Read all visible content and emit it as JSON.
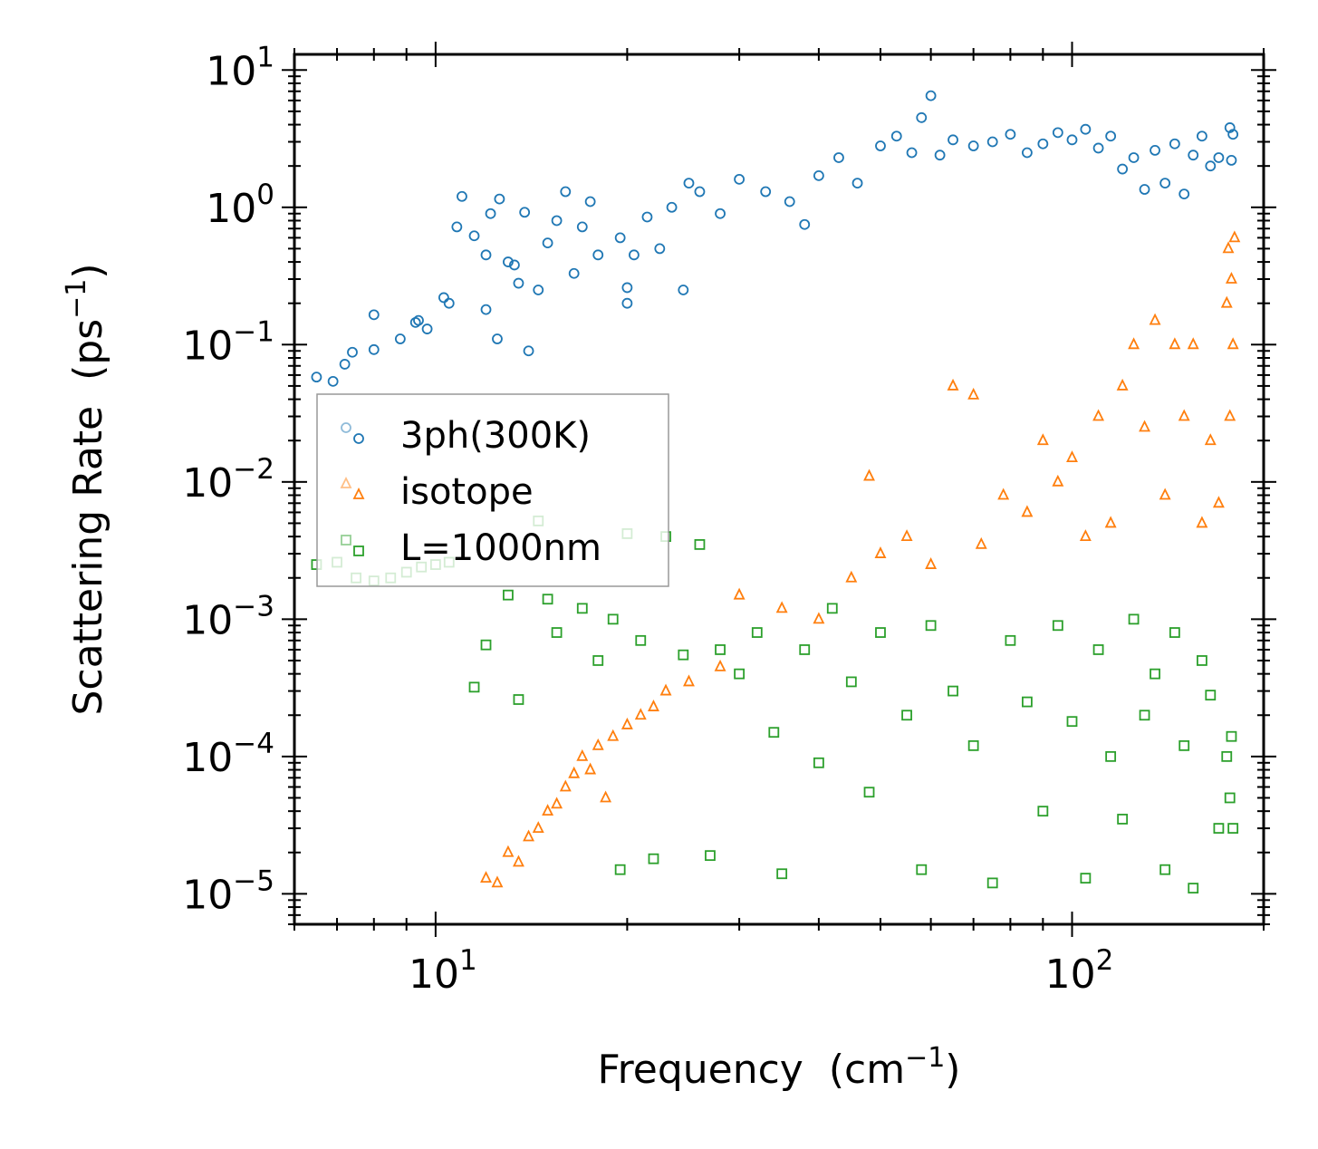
{
  "chart_data": {
    "type": "scatter",
    "title": "",
    "xlabel": "Frequency",
    "xlabel_unit": "(cm",
    "xlabel_unit_exp": "−1",
    "xlabel_unit_close": ")",
    "ylabel": "Scattering Rate",
    "ylabel_unit": "(ps",
    "ylabel_unit_exp": "−1",
    "ylabel_unit_close": ")",
    "xscale": "log",
    "yscale": "log",
    "xlim": [
      6.0,
      200.0
    ],
    "ylim": [
      6e-06,
      13.0
    ],
    "x_ticks": [
      {
        "value": 10,
        "base": "10",
        "exp": "1"
      },
      {
        "value": 100,
        "base": "10",
        "exp": "2"
      }
    ],
    "y_ticks": [
      {
        "value": 10,
        "base": "10",
        "exp": "1"
      },
      {
        "value": 1,
        "base": "10",
        "exp": "0"
      },
      {
        "value": 0.1,
        "base": "10",
        "exp": "−1"
      },
      {
        "value": 0.01,
        "base": "10",
        "exp": "−2"
      },
      {
        "value": 0.001,
        "base": "10",
        "exp": "−3"
      },
      {
        "value": 0.0001,
        "base": "10",
        "exp": "−4"
      },
      {
        "value": 1e-05,
        "base": "10",
        "exp": "−5"
      }
    ],
    "legend_position": "center-left",
    "series": [
      {
        "name": "3ph(300K)",
        "marker": "circle",
        "color": "#1f77b4",
        "points": [
          [
            6.5,
            0.058
          ],
          [
            6.9,
            0.054
          ],
          [
            7.2,
            0.072
          ],
          [
            7.4,
            0.088
          ],
          [
            8.0,
            0.092
          ],
          [
            8.0,
            0.165
          ],
          [
            8.8,
            0.11
          ],
          [
            9.3,
            0.145
          ],
          [
            9.4,
            0.15
          ],
          [
            9.7,
            0.13
          ],
          [
            10.3,
            0.22
          ],
          [
            10.5,
            0.2
          ],
          [
            10.8,
            0.72
          ],
          [
            11.0,
            1.2
          ],
          [
            11.5,
            0.62
          ],
          [
            12.0,
            0.18
          ],
          [
            12.0,
            0.45
          ],
          [
            12.2,
            0.9
          ],
          [
            12.5,
            0.11
          ],
          [
            12.6,
            1.15
          ],
          [
            13.0,
            0.4
          ],
          [
            13.3,
            0.38
          ],
          [
            13.5,
            0.28
          ],
          [
            13.8,
            0.92
          ],
          [
            14.0,
            0.09
          ],
          [
            14.5,
            0.25
          ],
          [
            15.0,
            0.55
          ],
          [
            15.5,
            0.8
          ],
          [
            16.0,
            1.3
          ],
          [
            16.5,
            0.33
          ],
          [
            17.0,
            0.72
          ],
          [
            17.5,
            1.1
          ],
          [
            18.0,
            0.45
          ],
          [
            19.5,
            0.6
          ],
          [
            20.0,
            0.26
          ],
          [
            20.0,
            0.2
          ],
          [
            20.5,
            0.45
          ],
          [
            21.5,
            0.85
          ],
          [
            22.5,
            0.5
          ],
          [
            23.5,
            1.0
          ],
          [
            24.5,
            0.25
          ],
          [
            25.0,
            1.5
          ],
          [
            26.0,
            1.3
          ],
          [
            28.0,
            0.9
          ],
          [
            30.0,
            1.6
          ],
          [
            33.0,
            1.3
          ],
          [
            36.0,
            1.1
          ],
          [
            38.0,
            0.75
          ],
          [
            40.0,
            1.7
          ],
          [
            43.0,
            2.3
          ],
          [
            46.0,
            1.5
          ],
          [
            50.0,
            2.8
          ],
          [
            53.0,
            3.3
          ],
          [
            56.0,
            2.5
          ],
          [
            58.0,
            4.5
          ],
          [
            60.0,
            6.5
          ],
          [
            62.0,
            2.4
          ],
          [
            65.0,
            3.1
          ],
          [
            70.0,
            2.8
          ],
          [
            75.0,
            3.0
          ],
          [
            80.0,
            3.4
          ],
          [
            85.0,
            2.5
          ],
          [
            90.0,
            2.9
          ],
          [
            95.0,
            3.5
          ],
          [
            100.0,
            3.1
          ],
          [
            105.0,
            3.7
          ],
          [
            110.0,
            2.7
          ],
          [
            115.0,
            3.3
          ],
          [
            120.0,
            1.9
          ],
          [
            125.0,
            2.3
          ],
          [
            130.0,
            1.35
          ],
          [
            135.0,
            2.6
          ],
          [
            140.0,
            1.5
          ],
          [
            145.0,
            2.9
          ],
          [
            150.0,
            1.25
          ],
          [
            155.0,
            2.4
          ],
          [
            160.0,
            3.3
          ],
          [
            165.0,
            2.0
          ],
          [
            170.0,
            2.3
          ],
          [
            177.0,
            3.8
          ],
          [
            178.0,
            2.2
          ],
          [
            179.0,
            3.4
          ]
        ]
      },
      {
        "name": "isotope",
        "marker": "triangle",
        "color": "#ff7f0e",
        "points": [
          [
            12.0,
            1.3e-05
          ],
          [
            12.5,
            1.2e-05
          ],
          [
            13.0,
            2e-05
          ],
          [
            13.5,
            1.7e-05
          ],
          [
            14.0,
            2.6e-05
          ],
          [
            14.5,
            3e-05
          ],
          [
            15.0,
            4e-05
          ],
          [
            15.5,
            4.5e-05
          ],
          [
            16.0,
            6e-05
          ],
          [
            16.5,
            7.5e-05
          ],
          [
            17.0,
            0.0001
          ],
          [
            17.5,
            8e-05
          ],
          [
            18.0,
            0.00012
          ],
          [
            18.5,
            5e-05
          ],
          [
            19.0,
            0.00014
          ],
          [
            20.0,
            0.00017
          ],
          [
            21.0,
            0.0002
          ],
          [
            22.0,
            0.00023
          ],
          [
            23.0,
            0.0003
          ],
          [
            25.0,
            0.00035
          ],
          [
            28.0,
            0.00045
          ],
          [
            30.0,
            0.0015
          ],
          [
            35.0,
            0.0012
          ],
          [
            40.0,
            0.001
          ],
          [
            45.0,
            0.002
          ],
          [
            48.0,
            0.011
          ],
          [
            50.0,
            0.003
          ],
          [
            55.0,
            0.004
          ],
          [
            60.0,
            0.0025
          ],
          [
            65.0,
            0.05
          ],
          [
            70.0,
            0.043
          ],
          [
            72.0,
            0.0035
          ],
          [
            78.0,
            0.008
          ],
          [
            85.0,
            0.006
          ],
          [
            90.0,
            0.02
          ],
          [
            95.0,
            0.01
          ],
          [
            100.0,
            0.015
          ],
          [
            105.0,
            0.004
          ],
          [
            110.0,
            0.03
          ],
          [
            115.0,
            0.005
          ],
          [
            120.0,
            0.05
          ],
          [
            125.0,
            0.1
          ],
          [
            130.0,
            0.025
          ],
          [
            135.0,
            0.15
          ],
          [
            140.0,
            0.008
          ],
          [
            145.0,
            0.1
          ],
          [
            150.0,
            0.03
          ],
          [
            155.0,
            0.1
          ],
          [
            160.0,
            0.005
          ],
          [
            165.0,
            0.02
          ],
          [
            170.0,
            0.007
          ],
          [
            175.0,
            0.2
          ],
          [
            176.0,
            0.5
          ],
          [
            177.0,
            0.03
          ],
          [
            178.0,
            0.3
          ],
          [
            179.0,
            0.1
          ],
          [
            180.0,
            0.6
          ]
        ]
      },
      {
        "name": "L=1000nm",
        "marker": "square",
        "color": "#2ca02c",
        "points": [
          [
            6.5,
            0.0025
          ],
          [
            7.0,
            0.0026
          ],
          [
            7.5,
            0.002
          ],
          [
            8.0,
            0.0019
          ],
          [
            8.5,
            0.002
          ],
          [
            9.0,
            0.0022
          ],
          [
            9.5,
            0.0024
          ],
          [
            10.0,
            0.0025
          ],
          [
            10.5,
            0.0026
          ],
          [
            11.5,
            0.00032
          ],
          [
            12.0,
            0.00065
          ],
          [
            13.0,
            0.0015
          ],
          [
            13.5,
            0.00026
          ],
          [
            14.5,
            0.0052
          ],
          [
            15.0,
            0.0014
          ],
          [
            15.5,
            0.0008
          ],
          [
            17.0,
            0.0012
          ],
          [
            18.0,
            0.0005
          ],
          [
            19.0,
            0.001
          ],
          [
            19.5,
            1.5e-05
          ],
          [
            20.0,
            0.0042
          ],
          [
            21.0,
            0.0007
          ],
          [
            22.0,
            1.8e-05
          ],
          [
            23.0,
            0.004
          ],
          [
            24.5,
            0.00055
          ],
          [
            26.0,
            0.0035
          ],
          [
            27.0,
            1.9e-05
          ],
          [
            28.0,
            0.0006
          ],
          [
            30.0,
            0.0004
          ],
          [
            32.0,
            0.0008
          ],
          [
            34.0,
            0.00015
          ],
          [
            35.0,
            1.4e-05
          ],
          [
            38.0,
            0.0006
          ],
          [
            40.0,
            9e-05
          ],
          [
            42.0,
            0.0012
          ],
          [
            45.0,
            0.00035
          ],
          [
            48.0,
            5.5e-05
          ],
          [
            50.0,
            0.0008
          ],
          [
            55.0,
            0.0002
          ],
          [
            58.0,
            1.5e-05
          ],
          [
            60.0,
            0.0009
          ],
          [
            65.0,
            0.0003
          ],
          [
            70.0,
            0.00012
          ],
          [
            75.0,
            1.2e-05
          ],
          [
            80.0,
            0.0007
          ],
          [
            85.0,
            0.00025
          ],
          [
            90.0,
            4e-05
          ],
          [
            95.0,
            0.0009
          ],
          [
            100.0,
            0.00018
          ],
          [
            105.0,
            1.3e-05
          ],
          [
            110.0,
            0.0006
          ],
          [
            115.0,
            0.0001
          ],
          [
            120.0,
            3.5e-05
          ],
          [
            125.0,
            0.001
          ],
          [
            130.0,
            0.0002
          ],
          [
            135.0,
            0.0004
          ],
          [
            140.0,
            1.5e-05
          ],
          [
            145.0,
            0.0008
          ],
          [
            150.0,
            0.00012
          ],
          [
            155.0,
            1.1e-05
          ],
          [
            160.0,
            0.0005
          ],
          [
            165.0,
            0.00028
          ],
          [
            170.0,
            3e-05
          ],
          [
            175.0,
            0.0001
          ],
          [
            177.0,
            5e-05
          ],
          [
            178.0,
            0.00014
          ],
          [
            179.0,
            3e-05
          ]
        ]
      }
    ]
  }
}
